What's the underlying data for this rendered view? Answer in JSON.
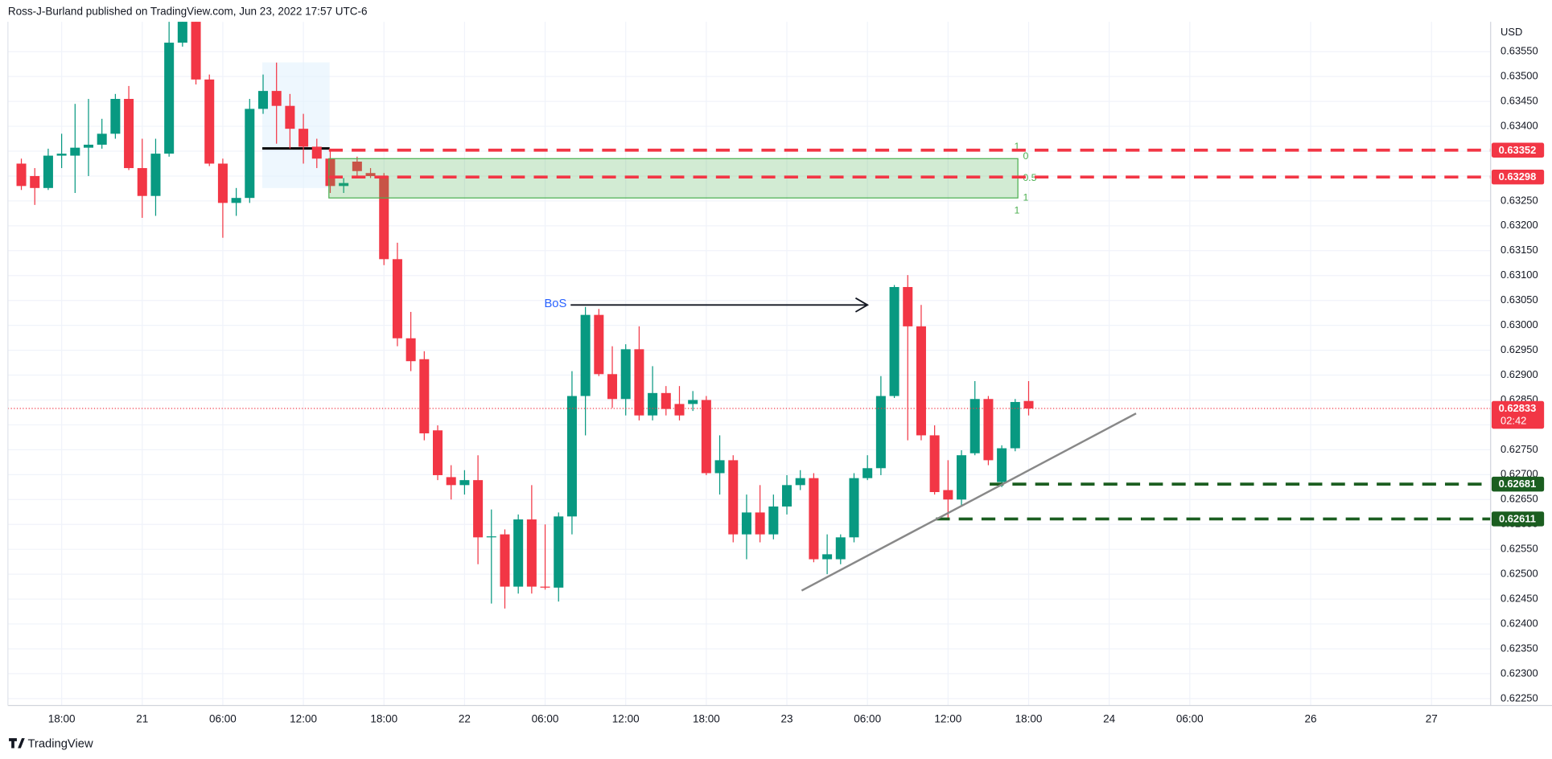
{
  "header": "Ross-J-Burland published on TradingView.com, Jun 23, 2022 17:57 UTC-6",
  "footer": "TradingView",
  "chart_data": {
    "type": "candlestick",
    "currency": "USD",
    "up_color": "#089981",
    "down_color": "#f23645",
    "grid": true,
    "xlim": [
      -1,
      109.4
    ],
    "xticks": [
      {
        "value": 3,
        "label": "18:00"
      },
      {
        "value": 9,
        "label": "21"
      },
      {
        "value": 15,
        "label": "06:00"
      },
      {
        "value": 21,
        "label": "12:00"
      },
      {
        "value": 27,
        "label": "18:00"
      },
      {
        "value": 33,
        "label": "22"
      },
      {
        "value": 39,
        "label": "06:00"
      },
      {
        "value": 45,
        "label": "12:00"
      },
      {
        "value": 51,
        "label": "18:00"
      },
      {
        "value": 57,
        "label": "23"
      },
      {
        "value": 63,
        "label": "06:00"
      },
      {
        "value": 69,
        "label": "12:00"
      },
      {
        "value": 75,
        "label": "18:00"
      },
      {
        "value": 81,
        "label": "24"
      },
      {
        "value": 87,
        "label": "06:00"
      },
      {
        "value": 96,
        "label": "26"
      },
      {
        "value": 105,
        "label": "27"
      }
    ],
    "ylim": [
      0.62236,
      0.6361
    ],
    "yticks": [
      {
        "value": 0.6225,
        "label": "0.62250"
      },
      {
        "value": 0.623,
        "label": "0.62300"
      },
      {
        "value": 0.6235,
        "label": "0.62350"
      },
      {
        "value": 0.624,
        "label": "0.62400"
      },
      {
        "value": 0.6245,
        "label": "0.62450"
      },
      {
        "value": 0.625,
        "label": "0.62500"
      },
      {
        "value": 0.6255,
        "label": "0.62550"
      },
      {
        "value": 0.626,
        "label": "0.62600"
      },
      {
        "value": 0.6265,
        "label": "0.62650"
      },
      {
        "value": 0.627,
        "label": "0.62700"
      },
      {
        "value": 0.6275,
        "label": "0.62750"
      },
      {
        "value": 0.628,
        "label": "0.62800"
      },
      {
        "value": 0.6285,
        "label": "0.62850"
      },
      {
        "value": 0.629,
        "label": "0.62900"
      },
      {
        "value": 0.6295,
        "label": "0.62950"
      },
      {
        "value": 0.63,
        "label": "0.63000"
      },
      {
        "value": 0.6305,
        "label": "0.63050"
      },
      {
        "value": 0.631,
        "label": "0.63100"
      },
      {
        "value": 0.6315,
        "label": "0.63150"
      },
      {
        "value": 0.632,
        "label": "0.63200"
      },
      {
        "value": 0.6325,
        "label": "0.63250"
      },
      {
        "value": 0.633,
        "label": "0.63300"
      },
      {
        "value": 0.6335,
        "label": "0.63350"
      },
      {
        "value": 0.634,
        "label": "0.63400"
      },
      {
        "value": 0.6345,
        "label": "0.63450"
      },
      {
        "value": 0.635,
        "label": "0.63500"
      },
      {
        "value": 0.6355,
        "label": "0.63550"
      }
    ],
    "open": [
      0.63325,
      0.633,
      0.63276,
      0.63341,
      0.63341,
      0.63357,
      0.63363,
      0.63385,
      0.63455,
      0.63316,
      0.6326,
      0.63345,
      0.63568,
      0.6361,
      0.63494,
      0.63325,
      0.63246,
      0.63256,
      0.63435,
      0.63471,
      0.63441,
      0.63395,
      0.63359,
      0.63335,
      0.6328,
      0.63329,
      0.63306,
      0.633,
      0.63133,
      0.62974,
      0.62932,
      0.62789,
      0.62695,
      0.62679,
      0.62689,
      0.62574,
      0.6258,
      0.62475,
      0.6261,
      0.62475,
      0.62473,
      0.62616,
      0.62858,
      0.63021,
      0.62902,
      0.62852,
      0.62952,
      0.62819,
      0.62864,
      0.62842,
      0.62842,
      0.6285,
      0.62703,
      0.62729,
      0.6258,
      0.62624,
      0.6258,
      0.62636,
      0.62679,
      0.62693,
      0.6253,
      0.6253,
      0.62574,
      0.62693,
      0.62713,
      0.62858,
      0.63077,
      0.62998,
      0.62779,
      0.62669,
      0.6265,
      0.62743,
      0.62852,
      0.62685,
      0.62753,
      0.62848
    ],
    "high": [
      0.63335,
      0.63316,
      0.63355,
      0.63385,
      0.63445,
      0.63455,
      0.63415,
      0.63465,
      0.63481,
      0.63375,
      0.63375,
      0.6361,
      0.6361,
      0.6361,
      0.63504,
      0.63335,
      0.63276,
      0.63455,
      0.63504,
      0.63528,
      0.63465,
      0.63425,
      0.63375,
      0.63355,
      0.63296,
      0.63339,
      0.63316,
      0.63306,
      0.63166,
      0.63027,
      0.62948,
      0.62799,
      0.62719,
      0.62709,
      0.62739,
      0.6263,
      0.6259,
      0.6262,
      0.62679,
      0.626,
      0.62624,
      0.62908,
      0.63037,
      0.63033,
      0.62958,
      0.62962,
      0.62998,
      0.62918,
      0.62878,
      0.62878,
      0.62868,
      0.62858,
      0.62779,
      0.62739,
      0.6266,
      0.62679,
      0.6266,
      0.62699,
      0.62709,
      0.62703,
      0.6258,
      0.6258,
      0.62703,
      0.62739,
      0.62898,
      0.63081,
      0.63101,
      0.63041,
      0.62799,
      0.62729,
      0.62749,
      0.62888,
      0.62858,
      0.62759,
      0.62852,
      0.62888
    ],
    "low": [
      0.63272,
      0.63242,
      0.63272,
      0.63316,
      0.63266,
      0.633,
      0.63355,
      0.63375,
      0.63312,
      0.63216,
      0.6322,
      0.63339,
      0.6356,
      0.63484,
      0.6332,
      0.63176,
      0.6322,
      0.63246,
      0.63425,
      0.63365,
      0.63355,
      0.63325,
      0.63316,
      0.63266,
      0.63266,
      0.633,
      0.63296,
      0.63121,
      0.62958,
      0.62908,
      0.62769,
      0.62689,
      0.6265,
      0.6266,
      0.6252,
      0.62441,
      0.62431,
      0.62461,
      0.62461,
      0.62469,
      0.62445,
      0.6258,
      0.62779,
      0.62898,
      0.62834,
      0.62819,
      0.62809,
      0.62809,
      0.62819,
      0.62809,
      0.62828,
      0.62699,
      0.6266,
      0.62564,
      0.6253,
      0.62564,
      0.6257,
      0.6262,
      0.62669,
      0.62524,
      0.625,
      0.6252,
      0.62564,
      0.62689,
      0.62699,
      0.62854,
      0.62769,
      0.62769,
      0.6266,
      0.6261,
      0.62636,
      0.62739,
      0.62719,
      0.62675,
      0.62747,
      0.62819
    ],
    "close": [
      0.6328,
      0.63276,
      0.63341,
      0.63345,
      0.63357,
      0.63363,
      0.63385,
      0.63455,
      0.63316,
      0.6326,
      0.63345,
      0.63568,
      0.6361,
      0.63494,
      0.63325,
      0.63246,
      0.63256,
      0.63435,
      0.63471,
      0.63441,
      0.63395,
      0.63359,
      0.63335,
      0.6328,
      0.63286,
      0.6331,
      0.633,
      0.63133,
      0.62974,
      0.62928,
      0.62783,
      0.62699,
      0.62679,
      0.62689,
      0.62574,
      0.62576,
      0.62475,
      0.6261,
      0.62475,
      0.62473,
      0.62616,
      0.62858,
      0.63021,
      0.62902,
      0.62852,
      0.62952,
      0.62819,
      0.62864,
      0.62832,
      0.62819,
      0.6285,
      0.62703,
      0.62729,
      0.6258,
      0.62624,
      0.6258,
      0.62636,
      0.62679,
      0.62693,
      0.6253,
      0.6254,
      0.62574,
      0.62693,
      0.62713,
      0.62858,
      0.63077,
      0.62998,
      0.62779,
      0.62665,
      0.6265,
      0.62739,
      0.62852,
      0.62729,
      0.62753,
      0.62846,
      0.62833
    ],
    "countdown": "02:42",
    "levels": [
      {
        "value": 0.63352,
        "from": 22.9,
        "color": "#f23645"
      },
      {
        "value": 0.63298,
        "from": 22.9,
        "color": "#f23645"
      },
      {
        "value": 0.62681,
        "from": 72.1,
        "color": "#1b5e20"
      },
      {
        "value": 0.62611,
        "from": 68.1,
        "color": "#1b5e20"
      }
    ],
    "fib_zone": {
      "x": [
        22.9,
        74.2
      ],
      "y": [
        0.63335,
        0.63256
      ],
      "labels": [
        "1",
        "0",
        "0.5",
        "1",
        "1"
      ],
      "color": "#4caf50"
    },
    "trendline": {
      "x": [
        58.1,
        83.0
      ],
      "y": [
        0.62467,
        0.62823
      ],
      "color": "#888888"
    },
    "bos": {
      "label": "BoS",
      "x": [
        40.9,
        63.0
      ],
      "y": 0.63041,
      "color": "#2962ff"
    }
  }
}
